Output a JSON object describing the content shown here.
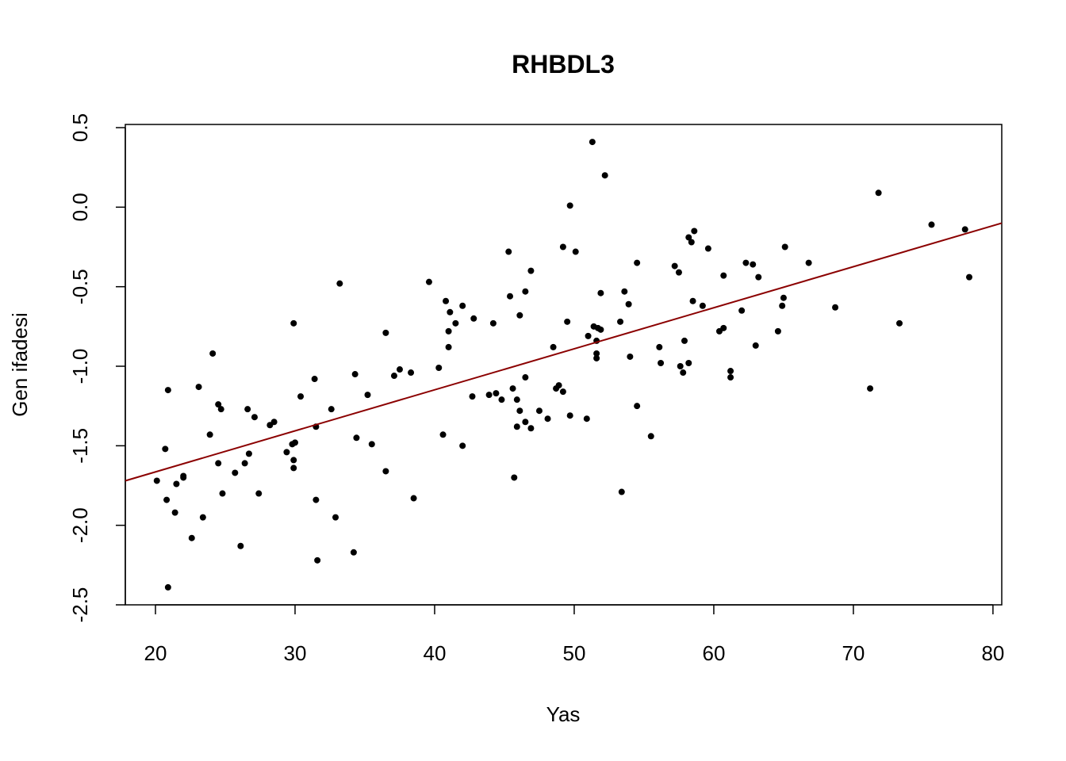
{
  "chart_data": {
    "type": "scatter",
    "title": "RHBDL3",
    "x_label": "Yas",
    "y_label": "Gen ifadesi",
    "color": "#000000",
    "x": [
      20.1,
      20.7,
      20.8,
      20.9,
      20.9,
      21.4,
      21.5,
      22.0,
      22.0,
      22.6,
      23.1,
      23.4,
      23.9,
      24.1,
      24.5,
      24.5,
      24.7,
      24.8,
      25.7,
      26.1,
      26.4,
      26.6,
      26.7,
      27.1,
      27.4,
      28.2,
      28.5,
      29.4,
      29.8,
      29.9,
      29.9,
      29.9,
      30.0,
      30.4,
      31.4,
      31.5,
      31.5,
      31.6,
      32.6,
      32.9,
      33.2,
      34.2,
      34.3,
      34.4,
      35.2,
      35.5,
      36.5,
      36.5,
      37.1,
      37.5,
      38.3,
      38.5,
      39.6,
      40.3,
      40.6,
      40.8,
      41.0,
      41.0,
      41.1,
      41.5,
      42.0,
      42.0,
      42.7,
      42.8,
      43.9,
      44.2,
      44.4,
      44.8,
      45.3,
      45.4,
      45.6,
      45.7,
      45.9,
      45.9,
      46.1,
      46.1,
      46.5,
      46.5,
      46.5,
      46.9,
      46.9,
      47.5,
      48.1,
      48.5,
      48.7,
      48.9,
      49.2,
      49.2,
      49.5,
      49.7,
      49.7,
      50.1,
      50.9,
      51.0,
      51.3,
      51.4,
      51.6,
      51.6,
      51.6,
      51.7,
      51.9,
      51.9,
      52.2,
      53.3,
      53.4,
      53.6,
      53.9,
      54.0,
      54.5,
      54.5,
      55.5,
      56.1,
      56.2,
      57.2,
      57.5,
      57.6,
      57.8,
      57.9,
      58.2,
      58.2,
      58.4,
      58.5,
      58.6,
      59.2,
      59.6,
      60.4,
      60.7,
      60.7,
      61.2,
      61.2,
      62.0,
      62.3,
      62.8,
      63.0,
      63.2,
      64.6,
      64.9,
      65.0,
      65.1,
      66.8,
      68.7,
      71.2,
      71.8,
      73.3,
      75.6,
      78.0,
      78.3
    ],
    "values": [
      -1.72,
      -1.52,
      -1.84,
      -2.39,
      -1.15,
      -1.92,
      -1.74,
      -1.69,
      -1.7,
      -2.08,
      -1.13,
      -1.95,
      -1.43,
      -0.92,
      -1.24,
      -1.61,
      -1.27,
      -1.8,
      -1.67,
      -2.13,
      -1.61,
      -1.27,
      -1.55,
      -1.32,
      -1.8,
      -1.37,
      -1.35,
      -1.54,
      -1.49,
      -1.59,
      -0.73,
      -1.64,
      -1.48,
      -1.19,
      -1.08,
      -1.38,
      -1.84,
      -2.22,
      -1.27,
      -1.95,
      -0.48,
      -2.17,
      -1.05,
      -1.45,
      -1.18,
      -1.49,
      -0.79,
      -1.66,
      -1.06,
      -1.02,
      -1.04,
      -1.83,
      -0.47,
      -1.01,
      -1.43,
      -0.59,
      -0.78,
      -0.88,
      -0.66,
      -0.73,
      -0.62,
      -1.5,
      -1.19,
      -0.7,
      -1.18,
      -0.73,
      -1.17,
      -1.21,
      -0.28,
      -0.56,
      -1.14,
      -1.7,
      -1.21,
      -1.38,
      -1.28,
      -0.68,
      -1.35,
      -0.53,
      -1.07,
      -1.39,
      -0.4,
      -1.28,
      -1.33,
      -0.88,
      -1.14,
      -1.12,
      -1.16,
      -0.25,
      -0.72,
      0.01,
      -1.31,
      -0.28,
      -1.33,
      -0.81,
      0.41,
      -0.75,
      -0.92,
      -0.95,
      -0.84,
      -0.76,
      -0.77,
      -0.54,
      0.2,
      -0.72,
      -1.79,
      -0.53,
      -0.61,
      -0.94,
      -1.25,
      -0.35,
      -1.44,
      -0.88,
      -0.98,
      -0.37,
      -0.41,
      -1.0,
      -1.04,
      -0.84,
      -0.98,
      -0.19,
      -0.22,
      -0.59,
      -0.15,
      -0.62,
      -0.26,
      -0.78,
      -0.76,
      -0.43,
      -1.03,
      -1.07,
      -0.65,
      -0.35,
      -0.36,
      -0.87,
      -0.44,
      -0.78,
      -0.62,
      -0.57,
      -0.25,
      -0.35,
      -0.63,
      -1.14,
      0.09,
      -0.73,
      -0.11,
      -0.14,
      -0.44
    ],
    "fit": {
      "color": "#8b0000",
      "x": [
        17.84,
        80.63
      ],
      "y": [
        -1.72,
        -0.1
      ]
    },
    "xlim": [
      17.84,
      80.63
    ],
    "ylim": [
      -2.5,
      0.52
    ],
    "xticks": [
      20,
      30,
      40,
      50,
      60,
      70,
      80
    ],
    "yticks": [
      -2.5,
      {
        "value": -2,
        "label": "-2.0"
      },
      -1.5,
      {
        "value": -1,
        "label": "-1.0"
      },
      -0.5,
      {
        "value": 0,
        "label": "0.0"
      },
      0.5
    ]
  }
}
